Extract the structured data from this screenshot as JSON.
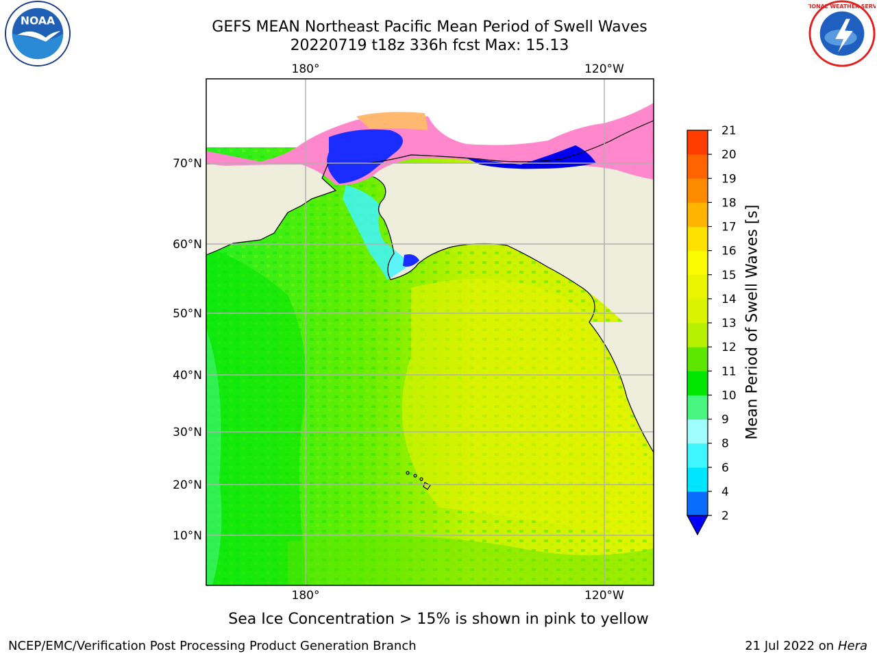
{
  "header": {
    "title_line1": "GEFS MEAN Northeast Pacific Mean Period of Swell Waves",
    "title_line2": "20220719 t18z 336h fcst   Max: 15.13"
  },
  "map": {
    "top_lon_labels": [
      "180°",
      "120°W"
    ],
    "bottom_lon_labels": [
      "180°",
      "120°W"
    ],
    "lat_labels": [
      "70°N",
      "60°N",
      "50°N",
      "40°N",
      "30°N",
      "20°N",
      "10°N"
    ],
    "colors": {
      "land": "#efeddb",
      "coastline": "#000000",
      "gridline": "#b0b0b0"
    }
  },
  "colorbar": {
    "label": "Mean Period of Swell Waves [s]",
    "tick_labels": [
      "2",
      "4",
      "6",
      "8",
      "9",
      "10",
      "11",
      "12",
      "13",
      "14",
      "15",
      "16",
      "17",
      "18",
      "19",
      "20",
      "21"
    ],
    "colors": [
      "#0a6cff",
      "#00e5ff",
      "#3ff5ff",
      "#9ffcff",
      "#47f57f",
      "#00e600",
      "#5ce600",
      "#b6f000",
      "#d8f400",
      "#eaf600",
      "#fafa00",
      "#ffe100",
      "#ffb400",
      "#ff8c00",
      "#ff6400",
      "#ff3c00",
      "#ff0000"
    ],
    "under_color": "#0000ff"
  },
  "footer": {
    "note": "Sea Ice Concentration > 15% is shown in pink to yellow",
    "left": "NCEP/EMC/Verification Post Processing Product Generation Branch",
    "right_date": "21 Jul 2022 on ",
    "right_host": "Hera"
  },
  "logos": {
    "noaa_text": "NOAA",
    "nws_text": "NATIONAL WEATHER SERVICE",
    "noaa_icon": "noaa-logo",
    "nws_icon": "nws-logo"
  }
}
